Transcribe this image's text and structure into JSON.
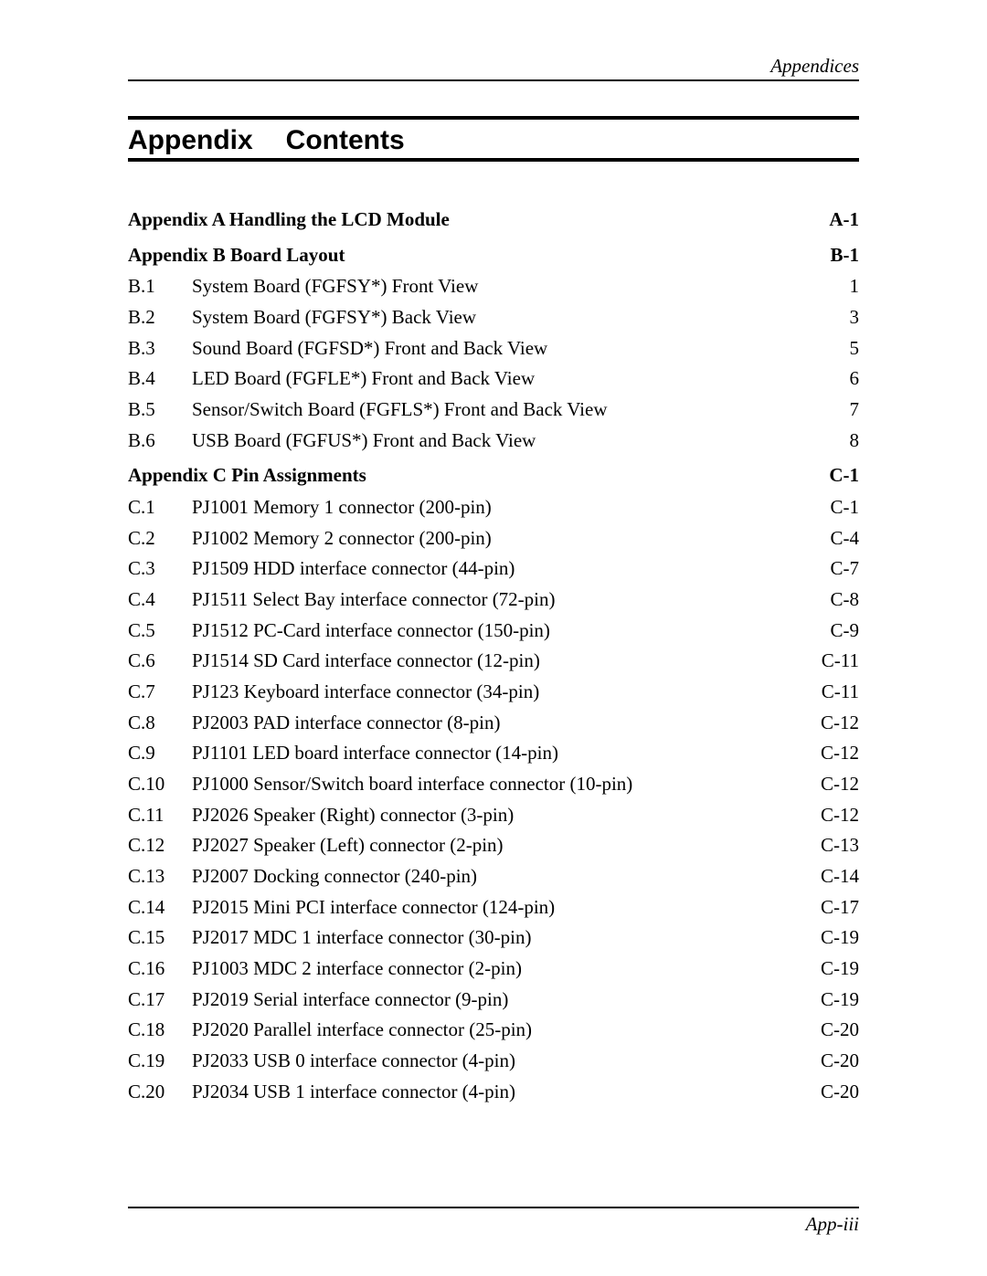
{
  "header": {
    "running_head": "Appendices"
  },
  "title": {
    "word1": "Appendix",
    "word2": "Contents"
  },
  "footer": {
    "page_label": "App-iii"
  },
  "toc": [
    {
      "type": "section",
      "label": "Appendix A  Handling the LCD Module",
      "page": "A-1"
    },
    {
      "type": "section",
      "label": "Appendix B  Board Layout",
      "page": "B-1"
    },
    {
      "type": "item",
      "num": "B.1",
      "label": "System Board (FGFSY*) Front View",
      "page": "1"
    },
    {
      "type": "item",
      "num": "B.2",
      "label": "System Board (FGFSY*) Back View",
      "page": "3"
    },
    {
      "type": "item",
      "num": "B.3",
      "label": "Sound Board (FGFSD*) Front and Back View",
      "page": "5"
    },
    {
      "type": "item",
      "num": "B.4",
      "label": "LED Board (FGFLE*) Front and Back View",
      "page": "6"
    },
    {
      "type": "item",
      "num": "B.5",
      "label": "Sensor/Switch Board (FGFLS*) Front and Back View",
      "page": "7"
    },
    {
      "type": "item",
      "num": "B.6",
      "label": "USB Board (FGFUS*) Front and Back View",
      "page": "8"
    },
    {
      "type": "section",
      "label": "Appendix C  Pin Assignments",
      "page": "C-1"
    },
    {
      "type": "item",
      "num": "C.1",
      "label": "PJ1001  Memory 1 connector (200-pin)",
      "page": "C-1"
    },
    {
      "type": "item",
      "num": "C.2",
      "label": "PJ1002  Memory 2 connector (200-pin)",
      "page": "C-4"
    },
    {
      "type": "item",
      "num": "C.3",
      "label": "PJ1509  HDD interface connector (44-pin)",
      "page": "C-7"
    },
    {
      "type": "item",
      "num": "C.4",
      "label": "PJ1511  Select Bay interface connector (72-pin)",
      "page": "C-8"
    },
    {
      "type": "item",
      "num": "C.5",
      "label": "PJ1512  PC-Card interface connector (150-pin)",
      "page": "C-9"
    },
    {
      "type": "item",
      "num": "C.6",
      "label": "PJ1514  SD Card interface connector (12-pin)",
      "page": "C-11"
    },
    {
      "type": "item",
      "num": "C.7",
      "label": "PJ123  Keyboard interface connector (34-pin)",
      "page": "C-11"
    },
    {
      "type": "item",
      "num": "C.8",
      "label": "PJ2003  PAD interface connector (8-pin)",
      "page": "C-12"
    },
    {
      "type": "item",
      "num": "C.9",
      "label": "PJ1101  LED board interface connector (14-pin)",
      "page": "C-12"
    },
    {
      "type": "item",
      "num": "C.10",
      "label": "PJ1000  Sensor/Switch board interface connector (10-pin)",
      "page": "C-12"
    },
    {
      "type": "item",
      "num": "C.11",
      "label": "PJ2026  Speaker (Right) connector (3-pin)",
      "page": "C-12"
    },
    {
      "type": "item",
      "num": "C.12",
      "label": "PJ2027  Speaker (Left) connector (2-pin)",
      "page": "C-13"
    },
    {
      "type": "item",
      "num": "C.13",
      "label": "PJ2007  Docking connector (240-pin)",
      "page": "C-14"
    },
    {
      "type": "item",
      "num": "C.14",
      "label": "PJ2015  Mini PCI interface connector (124-pin)",
      "page": "C-17"
    },
    {
      "type": "item",
      "num": "C.15",
      "label": "PJ2017  MDC 1 interface connector (30-pin)",
      "page": "C-19"
    },
    {
      "type": "item",
      "num": "C.16",
      "label": "PJ1003  MDC 2 interface connector (2-pin)",
      "page": "C-19"
    },
    {
      "type": "item",
      "num": "C.17",
      "label": "PJ2019  Serial interface connector (9-pin)",
      "page": "C-19"
    },
    {
      "type": "item",
      "num": "C.18",
      "label": "PJ2020  Parallel interface connector (25-pin)",
      "page": "C-20"
    },
    {
      "type": "item",
      "num": "C.19",
      "label": "PJ2033  USB 0 interface connector (4-pin)",
      "page": "C-20"
    },
    {
      "type": "item",
      "num": "C.20",
      "label": "PJ2034  USB 1 interface connector (4-pin)",
      "page": "C-20"
    }
  ]
}
